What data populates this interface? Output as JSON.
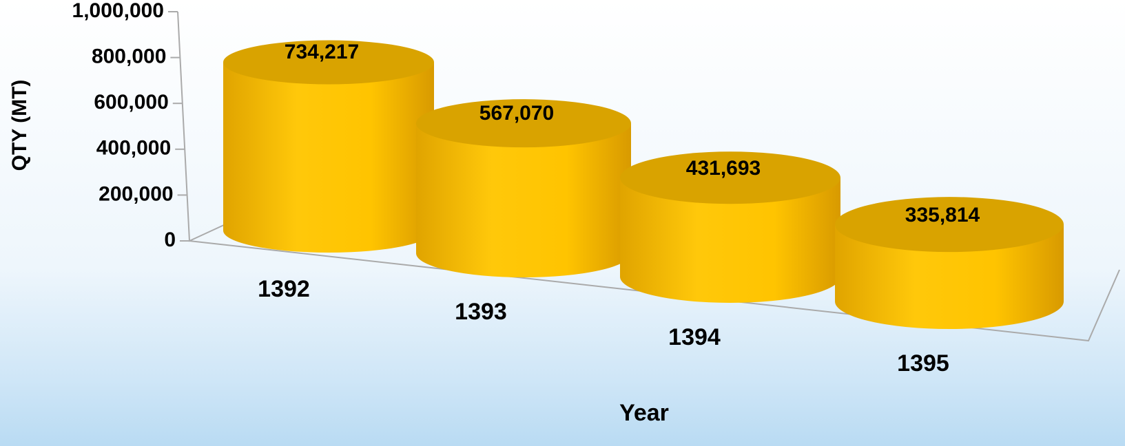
{
  "chart_data": {
    "type": "cylinder",
    "x_label": "Year",
    "y_label": "QTY (MT)",
    "categories": [
      "1392",
      "1393",
      "1394",
      "1395"
    ],
    "values": [
      734217,
      567070,
      431693,
      335814
    ],
    "value_labels": [
      "734,217",
      "567,070",
      "431,693",
      "335,814"
    ],
    "color": "#ffc20e",
    "ylim": [
      0,
      1000000
    ],
    "yticks": [
      0,
      {
        "value": 200000,
        "label": "200,000"
      },
      {
        "value": 400000,
        "label": "400,000"
      },
      {
        "value": 600000,
        "label": "600,000"
      },
      {
        "value": 800000,
        "label": "800,000"
      },
      {
        "value": 1000000,
        "label": "1,000,000"
      }
    ]
  }
}
